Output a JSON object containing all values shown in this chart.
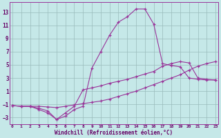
{
  "xlabel": "Windchill (Refroidissement éolien,°C)",
  "bg_color": "#c5e8e8",
  "line_color": "#993399",
  "grid_color": "#99bbbb",
  "text_color": "#660066",
  "xlim": [
    -0.3,
    23.3
  ],
  "ylim": [
    -4.0,
    14.5
  ],
  "yticks": [
    -3,
    -1,
    1,
    3,
    5,
    7,
    9,
    11,
    13
  ],
  "xticks": [
    0,
    1,
    2,
    3,
    4,
    5,
    6,
    7,
    8,
    9,
    10,
    11,
    12,
    13,
    14,
    15,
    16,
    17,
    18,
    19,
    20,
    21,
    22,
    23
  ],
  "line1_x": [
    0,
    1,
    2,
    3,
    4,
    5,
    6,
    7,
    8,
    9,
    10,
    11,
    12,
    13,
    14,
    15,
    16,
    17,
    18,
    19,
    20,
    21,
    22,
    23
  ],
  "line1_y": [
    -1.2,
    -1.3,
    -1.3,
    -1.3,
    -1.4,
    -1.5,
    -1.3,
    -1.1,
    -0.9,
    -0.7,
    -0.5,
    -0.2,
    0.2,
    0.6,
    1.0,
    1.5,
    2.0,
    2.5,
    3.0,
    3.5,
    4.2,
    4.8,
    5.2,
    5.5
  ],
  "line2_x": [
    0,
    1,
    2,
    3,
    4,
    5,
    6,
    7,
    8,
    9,
    10,
    11,
    12,
    13,
    14,
    15,
    16,
    17,
    18,
    19,
    20,
    21,
    22,
    23
  ],
  "line2_y": [
    -1.2,
    -1.3,
    -1.3,
    -1.8,
    -2.3,
    -3.3,
    -2.8,
    -1.8,
    -1.3,
    4.5,
    7.0,
    9.5,
    11.5,
    12.3,
    13.5,
    13.5,
    11.2,
    5.2,
    4.9,
    4.7,
    3.0,
    2.8,
    2.7,
    2.7
  ],
  "line3_x": [
    0,
    1,
    2,
    3,
    4,
    5,
    6,
    7,
    8,
    9,
    10,
    11,
    12,
    13,
    14,
    15,
    16,
    17,
    18,
    19,
    20,
    21,
    22,
    23
  ],
  "line3_y": [
    -1.2,
    -1.3,
    -1.3,
    -1.6,
    -2.0,
    -3.3,
    -2.3,
    -1.3,
    1.2,
    1.5,
    1.8,
    2.2,
    2.5,
    2.8,
    3.2,
    3.6,
    4.0,
    4.8,
    5.2,
    5.5,
    5.3,
    3.0,
    2.8,
    2.7
  ]
}
